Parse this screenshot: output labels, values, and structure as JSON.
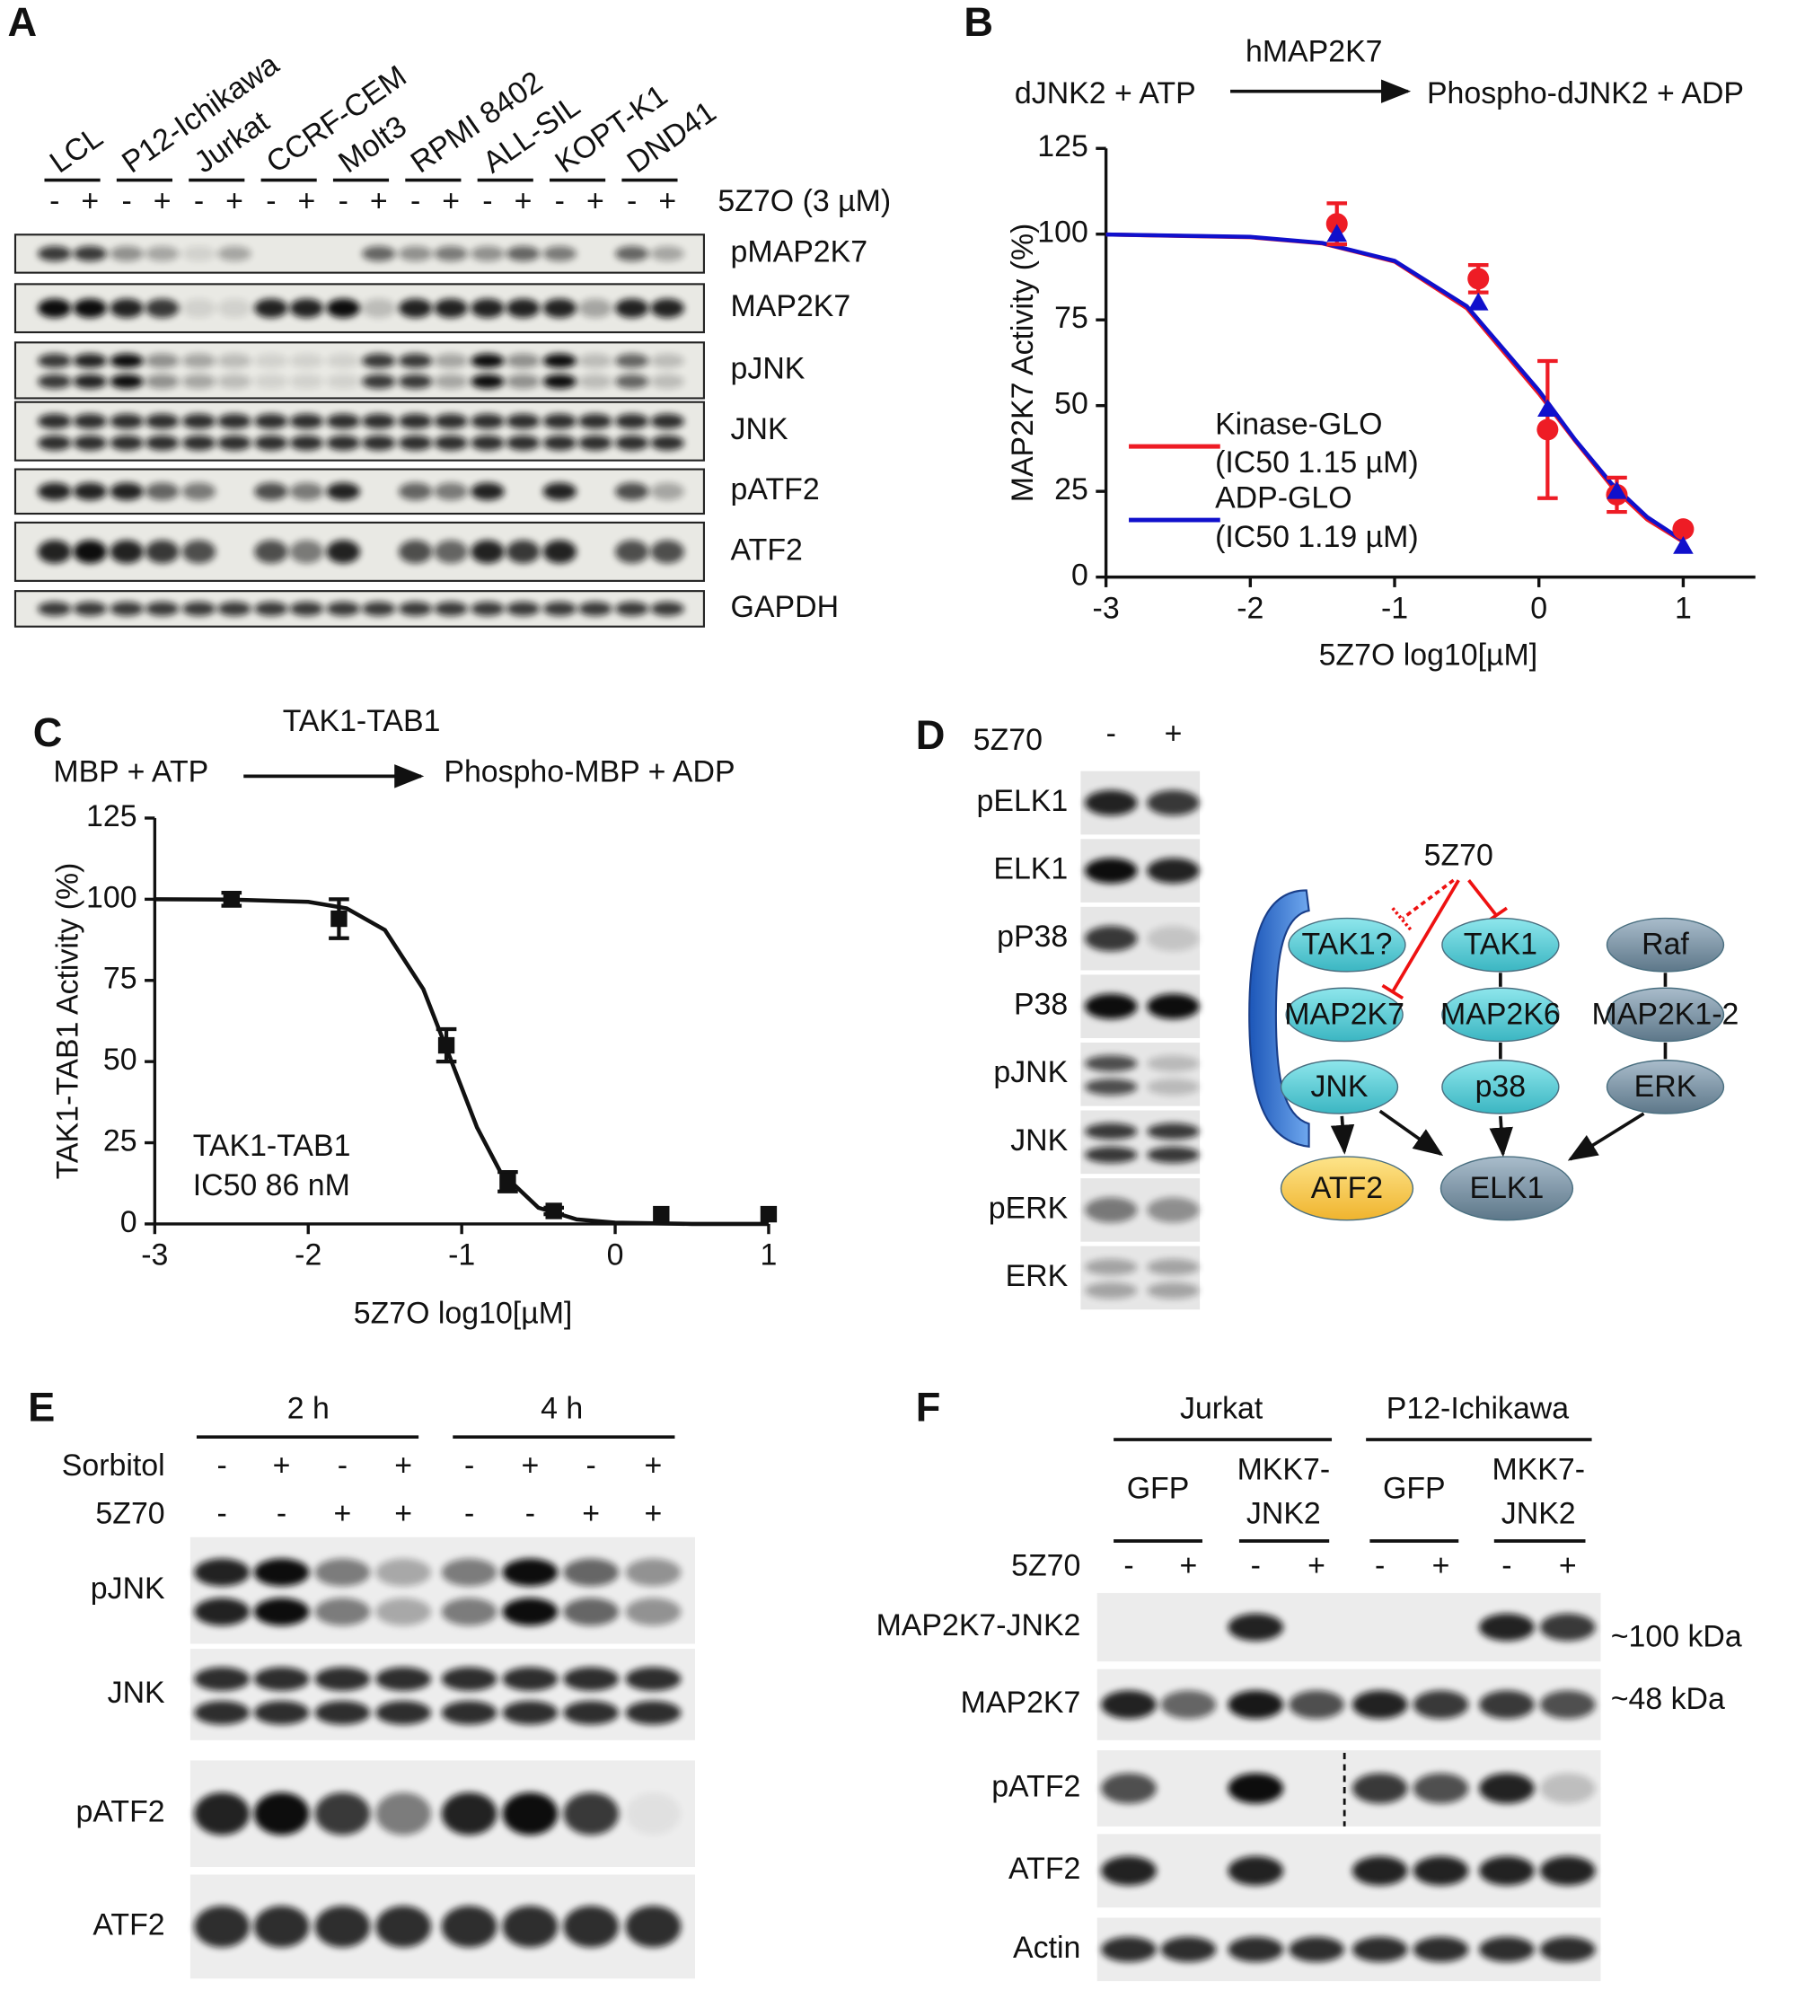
{
  "panels": {
    "A": {
      "label": "A",
      "cell_lines": [
        "LCL",
        "P12-Ichikawa",
        "Jurkat",
        "CCRF-CEM",
        "Molt3",
        "RPMI 8402",
        "ALL-SIL",
        "KOPT-K1",
        "DND41"
      ],
      "treatment": "5Z7O (3 µM)",
      "lane_signs": [
        "-",
        "+",
        "-",
        "+",
        "-",
        "+",
        "-",
        "+",
        "-",
        "+",
        "-",
        "+",
        "-",
        "+",
        "-",
        "+",
        "-",
        "+"
      ],
      "blots": [
        "pMAP2K7",
        "MAP2K7",
        "pJNK",
        "JNK",
        "pATF2",
        "ATF2",
        "GAPDH"
      ]
    },
    "D": {
      "label": "D",
      "treatment": "5Z70",
      "lane_signs": [
        "-",
        "+"
      ],
      "blots": [
        "pELK1",
        "ELK1",
        "pP38",
        "P38",
        "pJNK",
        "JNK",
        "pERK",
        "ERK"
      ],
      "diagram": {
        "inhibitor": "5Z70",
        "nodes": [
          "TAK1?",
          "MAP2K7",
          "JNK",
          "TAK1",
          "MAP2K6",
          "p38",
          "Raf",
          "MAP2K1-2",
          "ERK",
          "ATF2",
          "ELK1"
        ]
      }
    },
    "E": {
      "label": "E",
      "timepoints": [
        "2 h",
        "4 h"
      ],
      "rows": [
        {
          "name": "Sorbitol",
          "signs": [
            "-",
            "+",
            "-",
            "+",
            "-",
            "+",
            "-",
            "+"
          ]
        },
        {
          "name": "5Z70",
          "signs": [
            "-",
            "-",
            "+",
            "+",
            "-",
            "-",
            "+",
            "+"
          ]
        }
      ],
      "blots": [
        "pJNK",
        "JNK",
        "pATF2",
        "ATF2"
      ]
    },
    "F": {
      "label": "F",
      "groups": [
        "Jurkat",
        "P12-Ichikawa"
      ],
      "constructs": [
        [
          "GFP"
        ],
        [
          "MKK7-",
          "JNK2"
        ],
        [
          "GFP"
        ],
        [
          "MKK7-",
          "JNK2"
        ]
      ],
      "treatment": "5Z70",
      "lane_signs": [
        "-",
        "+",
        "-",
        "+",
        "-",
        "+",
        "-",
        "+"
      ],
      "blots": [
        "MAP2K7-JNK2",
        "MAP2K7",
        "pATF2",
        "ATF2",
        "Actin"
      ],
      "sizes": [
        "~100 kDa",
        "~48 kDa"
      ]
    }
  },
  "chart_data": [
    {
      "type": "line",
      "label": "B",
      "reaction": {
        "substrate": "dJNK2 + ATP",
        "enzyme": "hMAP2K7",
        "product": "Phospho-dJNK2 + ADP"
      },
      "ylabel": "MAP2K7 Activity (%)",
      "xlabel": "5Z7O log10[µM]",
      "xlim": [
        -3,
        1.5
      ],
      "ylim": [
        0,
        125
      ],
      "xticks": [
        -3,
        -2,
        -1,
        0,
        1
      ],
      "yticks": [
        0,
        25,
        50,
        75,
        100,
        125
      ],
      "series": [
        {
          "name": "Kinase-GLO",
          "sublabel": "(IC50 1.15 µM)",
          "color": "#ee1c25",
          "marker": "circle",
          "x": [
            -1.4,
            -0.42,
            0.06,
            0.54,
            1.0
          ],
          "values": [
            103,
            87,
            43,
            24,
            14
          ],
          "errors": [
            6,
            4,
            20,
            5,
            null
          ],
          "fit_x": [
            -3,
            -2,
            -1.5,
            -1,
            -0.5,
            0,
            0.25,
            0.5,
            0.75,
            1
          ],
          "fit_values": [
            99.9,
            99.1,
            97.3,
            92,
            78.4,
            53.5,
            39.8,
            26.7,
            16.8,
            10.3
          ]
        },
        {
          "name": "ADP-GLO",
          "sublabel": "(IC50 1.19 µM)",
          "color": "#1010cc",
          "marker": "triangle",
          "x": [
            -1.4,
            -0.42,
            0.06,
            0.54,
            1.0
          ],
          "values": [
            100,
            80,
            49,
            25,
            9
          ],
          "fit_x": [
            -3,
            -2,
            -1.5,
            -1,
            -0.5,
            0,
            0.25,
            0.5,
            0.75,
            1
          ],
          "fit_values": [
            99.9,
            99.2,
            97.4,
            92.2,
            79,
            54.4,
            40.1,
            27.4,
            17.5,
            10.6
          ]
        }
      ]
    },
    {
      "type": "line",
      "label": "C",
      "reaction": {
        "substrate": "MBP + ATP",
        "enzyme": "TAK1-TAB1",
        "product": "Phospho-MBP + ADP"
      },
      "ylabel": "TAK1-TAB1 Activity  (%)",
      "xlabel": "5Z7O log10[µM]",
      "annotation": [
        "TAK1-TAB1",
        "IC50 86 nM"
      ],
      "xlim": [
        -3,
        1
      ],
      "ylim": [
        0,
        125
      ],
      "xticks": [
        -3,
        -2,
        -1,
        0,
        1
      ],
      "yticks": [
        0,
        25,
        50,
        75,
        100,
        125
      ],
      "series": [
        {
          "color": "#111111",
          "marker": "square",
          "x": [
            -2.5,
            -1.8,
            -1.1,
            -0.7,
            -0.4,
            0.3,
            1.0
          ],
          "values": [
            100,
            94,
            55,
            13,
            4,
            3,
            3
          ],
          "errors": [
            2,
            6,
            5,
            3,
            1,
            null,
            null
          ],
          "fit_x": [
            -3,
            -2.5,
            -2,
            -1.75,
            -1.5,
            -1.25,
            -1.066,
            -0.9,
            -0.75,
            -0.5,
            -0.25,
            0,
            0.5,
            1
          ],
          "fit_values": [
            100,
            99.9,
            99.2,
            97.2,
            90.5,
            72.3,
            50,
            29.7,
            16.2,
            5,
            1.4,
            0.4,
            0,
            0
          ]
        }
      ]
    }
  ]
}
